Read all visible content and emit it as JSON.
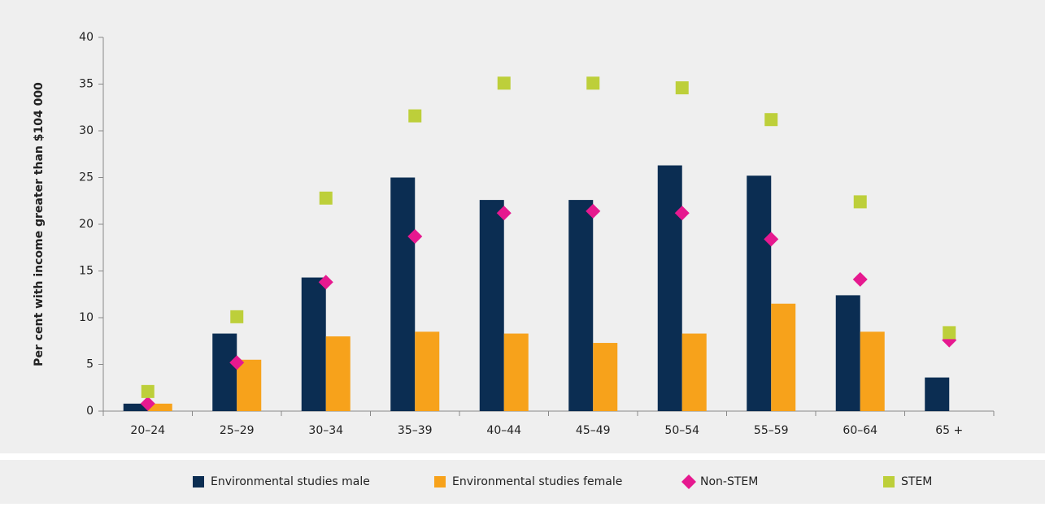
{
  "chart_data": {
    "type": "bar",
    "y_label": "Per cent with income greater than $104 000",
    "categories": [
      "20–24",
      "25–29",
      "30–34",
      "35–39",
      "40–44",
      "45–49",
      "50–54",
      "55–59",
      "60–64",
      "65 +"
    ],
    "series": [
      {
        "name": "Environmental studies male",
        "color": "#0b2d52",
        "kind": "bar",
        "values": [
          0.8,
          8.3,
          14.3,
          25,
          22.6,
          22.6,
          26.3,
          25.2,
          12.4,
          3.6
        ]
      },
      {
        "name": "Environmental studies female",
        "color": "#f7a21b",
        "kind": "bar",
        "values": [
          0.8,
          5.5,
          8,
          8.5,
          8.3,
          7.3,
          8.3,
          11.5,
          8.5,
          null
        ]
      },
      {
        "name": "Non-STEM",
        "color": "#e6198f",
        "kind": "diamond",
        "values": [
          0.8,
          5.2,
          13.8,
          18.7,
          21.2,
          21.4,
          21.2,
          18.4,
          14.1,
          7.6
        ]
      },
      {
        "name": "STEM",
        "color": "#bdcf3a",
        "kind": "square",
        "values": [
          2.1,
          10.1,
          22.8,
          31.6,
          35.1,
          35.1,
          34.6,
          31.2,
          22.4,
          8.4
        ]
      }
    ],
    "ylim": [
      0,
      40
    ],
    "yticks": [
      0,
      5,
      10,
      15,
      20,
      25,
      30,
      35,
      40
    ]
  }
}
